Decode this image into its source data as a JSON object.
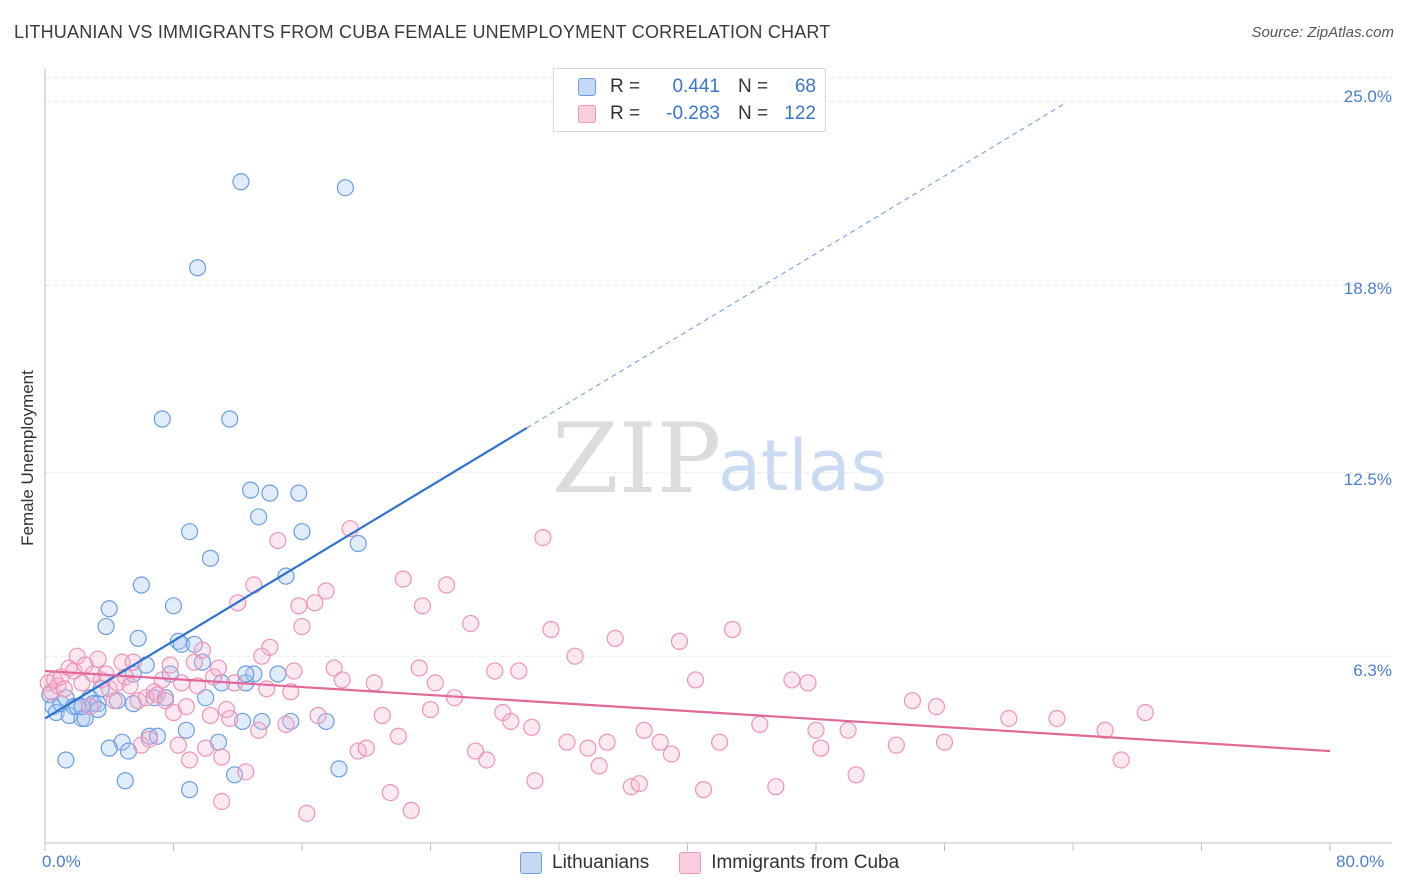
{
  "header": {
    "title": "LITHUANIAN VS IMMIGRANTS FROM CUBA FEMALE UNEMPLOYMENT CORRELATION CHART",
    "source": "Source: ZipAtlas.com"
  },
  "watermark": {
    "zip": "ZIP",
    "atlas": "atlas"
  },
  "legend_top": {
    "r_label": "R =",
    "n_label": "N =",
    "rows": [
      {
        "r_value": "0.441",
        "n_value": "68",
        "color": "#6b9ee6"
      },
      {
        "r_value": "-0.283",
        "n_value": "122",
        "color": "#ee94b7"
      }
    ]
  },
  "legend_bottom": {
    "items": [
      {
        "label": "Lithuanians",
        "color": "#6b9ee6"
      },
      {
        "label": "Immigrants from Cuba",
        "color": "#ee94b7"
      }
    ]
  },
  "chart_data": {
    "type": "scatter",
    "title": "LITHUANIAN VS IMMIGRANTS FROM CUBA FEMALE UNEMPLOYMENT CORRELATION CHART",
    "xlabel": "",
    "ylabel": "Female Unemployment",
    "xlim": [
      0,
      80
    ],
    "ylim": [
      0,
      25.8
    ],
    "x_tick_labels": [
      "0.0%",
      "80.0%"
    ],
    "y_ticks": [
      6.3,
      12.5,
      18.8,
      25.0
    ],
    "y_tick_labels": [
      "6.3%",
      "12.5%",
      "18.8%",
      "25.0%"
    ],
    "grid": true,
    "series": [
      {
        "name": "Lithuanians",
        "color": "#6b9ee6",
        "fill": "rgba(170,200,240,0.35)",
        "trend": {
          "x0": 0,
          "y0": 4.2,
          "x1": 30,
          "y1": 14.0,
          "dash_to_x": 63.5
        },
        "points": [
          [
            0.3,
            5.0
          ],
          [
            0.5,
            4.6
          ],
          [
            0.7,
            4.4
          ],
          [
            1.0,
            4.7
          ],
          [
            1.3,
            4.9
          ],
          [
            1.5,
            4.3
          ],
          [
            1.8,
            4.6
          ],
          [
            2.0,
            4.6
          ],
          [
            2.3,
            4.2
          ],
          [
            2.5,
            4.2
          ],
          [
            2.8,
            4.9
          ],
          [
            3.0,
            4.7
          ],
          [
            3.3,
            4.7
          ],
          [
            3.5,
            5.2
          ],
          [
            3.8,
            7.3
          ],
          [
            4.0,
            7.9
          ],
          [
            4.5,
            4.8
          ],
          [
            4.8,
            3.4
          ],
          [
            5.0,
            2.1
          ],
          [
            5.2,
            3.1
          ],
          [
            5.5,
            5.7
          ],
          [
            5.8,
            6.9
          ],
          [
            6.0,
            8.7
          ],
          [
            6.3,
            6.0
          ],
          [
            6.5,
            3.6
          ],
          [
            6.8,
            4.9
          ],
          [
            7.0,
            3.6
          ],
          [
            7.3,
            14.3
          ],
          [
            7.5,
            4.9
          ],
          [
            7.8,
            5.7
          ],
          [
            8.0,
            8.0
          ],
          [
            8.3,
            6.8
          ],
          [
            8.5,
            6.7
          ],
          [
            8.8,
            3.8
          ],
          [
            9.0,
            1.8
          ],
          [
            9.3,
            6.7
          ],
          [
            9.5,
            19.4
          ],
          [
            9.0,
            10.5
          ],
          [
            9.8,
            6.1
          ],
          [
            10.0,
            4.9
          ],
          [
            10.3,
            9.6
          ],
          [
            10.8,
            3.4
          ],
          [
            11.0,
            5.4
          ],
          [
            11.5,
            14.3
          ],
          [
            11.8,
            2.3
          ],
          [
            12.3,
            4.1
          ],
          [
            12.5,
            5.4
          ],
          [
            12.2,
            22.3
          ],
          [
            12.8,
            11.9
          ],
          [
            13.0,
            5.7
          ],
          [
            13.3,
            11.0
          ],
          [
            13.5,
            4.1
          ],
          [
            14.0,
            11.8
          ],
          [
            14.5,
            5.7
          ],
          [
            15.0,
            9.0
          ],
          [
            15.3,
            4.1
          ],
          [
            15.8,
            11.8
          ],
          [
            16.0,
            10.5
          ],
          [
            17.5,
            4.1
          ],
          [
            18.3,
            2.5
          ],
          [
            18.7,
            22.1
          ],
          [
            19.5,
            10.1
          ],
          [
            1.3,
            2.8
          ],
          [
            2.3,
            4.6
          ],
          [
            3.3,
            4.5
          ],
          [
            4.0,
            3.2
          ],
          [
            5.5,
            4.7
          ],
          [
            12.5,
            5.7
          ]
        ]
      },
      {
        "name": "Immigrants from Cuba",
        "color": "#ee94b7",
        "fill": "rgba(245,180,205,0.30)",
        "trend": {
          "x0": 0,
          "y0": 5.8,
          "x1": 80,
          "y1": 3.1
        },
        "points": [
          [
            0.2,
            5.4
          ],
          [
            0.4,
            5.1
          ],
          [
            0.6,
            5.5
          ],
          [
            0.8,
            5.3
          ],
          [
            1.0,
            5.6
          ],
          [
            1.2,
            5.2
          ],
          [
            1.5,
            5.9
          ],
          [
            1.8,
            5.8
          ],
          [
            2.0,
            6.3
          ],
          [
            2.3,
            5.4
          ],
          [
            2.5,
            6.0
          ],
          [
            2.8,
            4.6
          ],
          [
            3.0,
            5.7
          ],
          [
            3.3,
            6.2
          ],
          [
            3.5,
            5.5
          ],
          [
            3.8,
            5.7
          ],
          [
            4.0,
            5.2
          ],
          [
            4.3,
            4.8
          ],
          [
            4.5,
            5.4
          ],
          [
            4.8,
            6.1
          ],
          [
            5.0,
            5.6
          ],
          [
            5.3,
            5.3
          ],
          [
            5.5,
            6.1
          ],
          [
            5.8,
            4.8
          ],
          [
            6.0,
            3.3
          ],
          [
            6.3,
            4.9
          ],
          [
            6.5,
            3.5
          ],
          [
            6.8,
            5.1
          ],
          [
            7.0,
            5.0
          ],
          [
            7.3,
            5.5
          ],
          [
            7.5,
            4.8
          ],
          [
            7.8,
            6.0
          ],
          [
            8.0,
            4.4
          ],
          [
            8.3,
            3.3
          ],
          [
            8.5,
            5.4
          ],
          [
            8.8,
            4.6
          ],
          [
            9.0,
            2.8
          ],
          [
            9.3,
            6.1
          ],
          [
            9.5,
            5.3
          ],
          [
            9.8,
            6.5
          ],
          [
            10.0,
            3.2
          ],
          [
            10.3,
            4.3
          ],
          [
            10.5,
            5.6
          ],
          [
            10.8,
            5.9
          ],
          [
            11.0,
            2.9
          ],
          [
            11.3,
            4.5
          ],
          [
            11.5,
            4.2
          ],
          [
            11.8,
            5.4
          ],
          [
            12.0,
            8.1
          ],
          [
            12.5,
            2.4
          ],
          [
            13.0,
            8.7
          ],
          [
            13.3,
            3.8
          ],
          [
            13.5,
            6.3
          ],
          [
            13.8,
            5.2
          ],
          [
            14.0,
            6.6
          ],
          [
            14.5,
            10.2
          ],
          [
            15.0,
            4.0
          ],
          [
            15.3,
            5.1
          ],
          [
            15.5,
            5.8
          ],
          [
            15.8,
            8.0
          ],
          [
            16.0,
            7.3
          ],
          [
            16.3,
            1.0
          ],
          [
            16.8,
            8.1
          ],
          [
            17.0,
            4.3
          ],
          [
            17.5,
            8.5
          ],
          [
            18.0,
            5.9
          ],
          [
            18.5,
            5.5
          ],
          [
            19.0,
            10.6
          ],
          [
            19.5,
            3.1
          ],
          [
            20.0,
            3.2
          ],
          [
            20.5,
            5.4
          ],
          [
            21.0,
            4.3
          ],
          [
            21.5,
            1.7
          ],
          [
            22.0,
            3.6
          ],
          [
            22.3,
            8.9
          ],
          [
            22.8,
            1.1
          ],
          [
            23.3,
            5.9
          ],
          [
            23.5,
            8.0
          ],
          [
            24.0,
            4.5
          ],
          [
            24.3,
            5.4
          ],
          [
            25.0,
            8.7
          ],
          [
            25.5,
            4.9
          ],
          [
            26.5,
            7.4
          ],
          [
            26.8,
            3.1
          ],
          [
            27.5,
            2.8
          ],
          [
            28.0,
            5.8
          ],
          [
            28.5,
            4.4
          ],
          [
            29.0,
            4.1
          ],
          [
            29.5,
            5.8
          ],
          [
            30.3,
            3.9
          ],
          [
            31.0,
            10.3
          ],
          [
            31.5,
            7.2
          ],
          [
            32.5,
            3.4
          ],
          [
            33.0,
            6.3
          ],
          [
            33.8,
            3.2
          ],
          [
            34.5,
            2.6
          ],
          [
            35.0,
            3.4
          ],
          [
            35.5,
            6.9
          ],
          [
            36.5,
            1.9
          ],
          [
            37.3,
            3.8
          ],
          [
            38.3,
            3.4
          ],
          [
            39.0,
            3.0
          ],
          [
            39.5,
            6.8
          ],
          [
            40.5,
            5.5
          ],
          [
            41.0,
            1.8
          ],
          [
            42.0,
            3.4
          ],
          [
            42.8,
            7.2
          ],
          [
            44.5,
            4.0
          ],
          [
            45.5,
            1.9
          ],
          [
            46.5,
            5.5
          ],
          [
            47.5,
            5.4
          ],
          [
            48.0,
            3.8
          ],
          [
            48.3,
            3.2
          ],
          [
            50.0,
            3.8
          ],
          [
            50.5,
            2.3
          ],
          [
            53.0,
            3.3
          ],
          [
            54.0,
            4.8
          ],
          [
            55.5,
            4.6
          ],
          [
            56.0,
            3.4
          ],
          [
            60.0,
            4.2
          ],
          [
            63.0,
            4.2
          ],
          [
            66.0,
            3.8
          ],
          [
            67.0,
            2.8
          ],
          [
            68.5,
            4.4
          ],
          [
            37.0,
            2.0
          ],
          [
            11.0,
            1.4
          ],
          [
            30.5,
            2.1
          ]
        ]
      }
    ]
  }
}
